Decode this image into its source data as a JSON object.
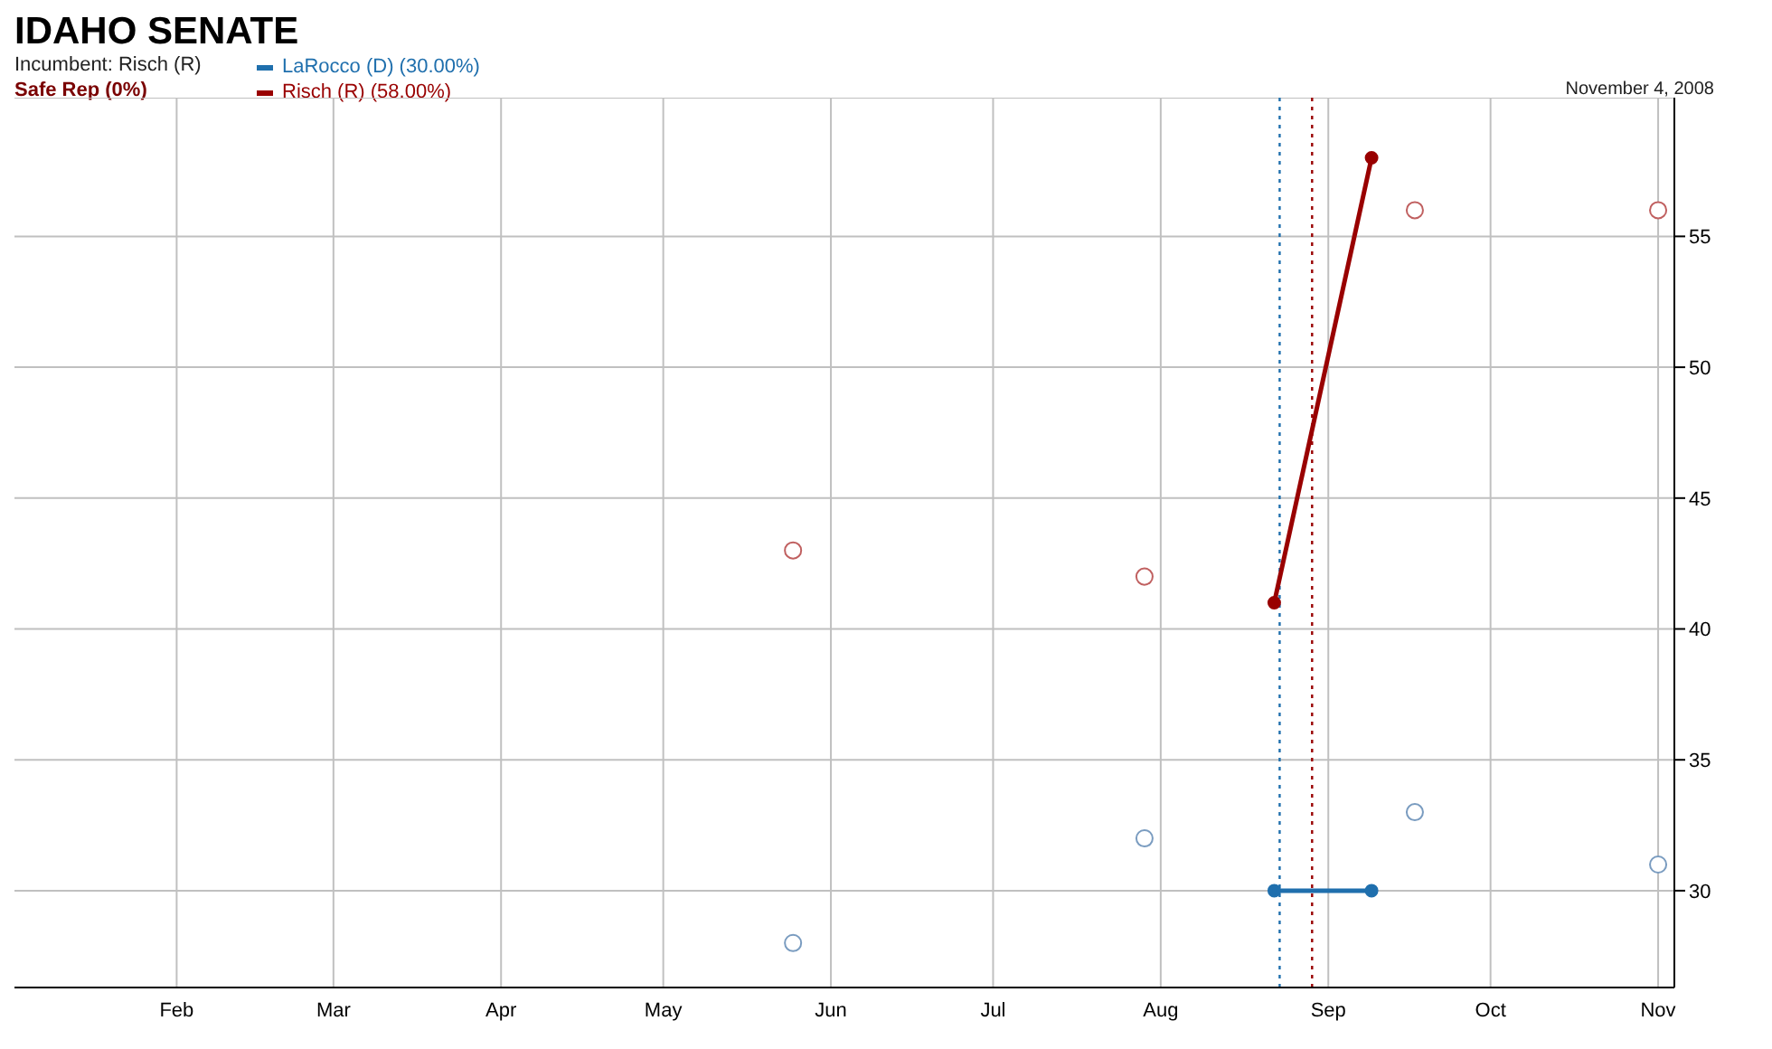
{
  "chart_data": {
    "type": "line",
    "title": "IDAHO SENATE",
    "annotations": [
      "Incumbent: Risch (R)",
      "Safe Rep (0%)",
      "November 4, 2008"
    ],
    "series": [
      {
        "name": "LaRocco (D) (30.00%)",
        "color": "#1f6fad",
        "x": [
          "2008-08-22",
          "2008-09-09"
        ],
        "values": [
          30,
          30
        ]
      },
      {
        "name": "Risch (R) (58.00%)",
        "color": "#990000",
        "x": [
          "2008-08-22",
          "2008-09-09"
        ],
        "values": [
          41,
          58
        ]
      },
      {
        "type": "scatter",
        "color": "#7a9cc0",
        "x": [
          "2008-05-25",
          "2008-07-29",
          "2008-09-17",
          "2008-11-01"
        ],
        "values": [
          28,
          32,
          33,
          31
        ]
      },
      {
        "type": "scatter",
        "color": "#c06060",
        "x": [
          "2008-05-25",
          "2008-07-29",
          "2008-09-17",
          "2008-11-01"
        ],
        "values": [
          43,
          42,
          56,
          56
        ]
      }
    ],
    "xlim": [
      "2008-01-01",
      "2008-11-04"
    ],
    "xticks": [
      {
        "value": "2008-02-01",
        "label": "Feb"
      },
      {
        "value": "2008-03-01",
        "label": "Mar"
      },
      {
        "value": "2008-04-01",
        "label": "Apr"
      },
      {
        "value": "2008-05-01",
        "label": "May"
      },
      {
        "value": "2008-06-01",
        "label": "Jun"
      },
      {
        "value": "2008-07-01",
        "label": "Jul"
      },
      {
        "value": "2008-08-01",
        "label": "Aug"
      },
      {
        "value": "2008-09-01",
        "label": "Sep"
      },
      {
        "value": "2008-10-01",
        "label": "Oct"
      },
      {
        "value": "2008-11-01",
        "label": "Nov"
      }
    ],
    "ylim": [
      26.3,
      60.3
    ],
    "yticks": [
      30,
      35,
      40,
      45,
      50,
      55
    ],
    "ref_lines": [
      {
        "axis": "x",
        "value": "2008-08-23",
        "color": "#1f6fad",
        "line_style": "dotted"
      },
      {
        "axis": "x",
        "value": "2008-08-29",
        "color": "#990000",
        "line_style": "dotted"
      }
    ],
    "grid": true,
    "legend": "top left",
    "marker": "circle"
  }
}
